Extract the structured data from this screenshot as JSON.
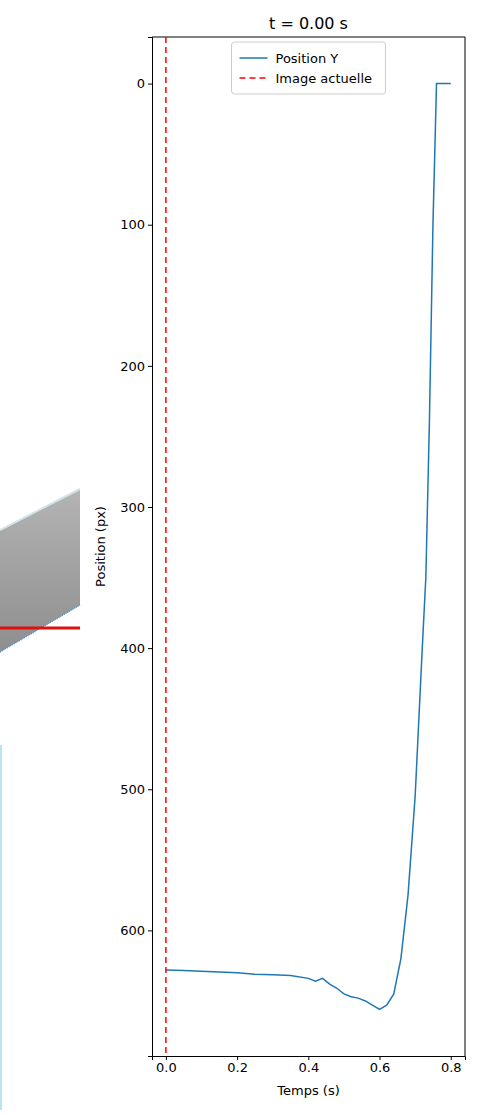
{
  "chart_data": {
    "type": "line",
    "title": "t = 0.00 s",
    "x_label": "Temps (s)",
    "y_label": "Position (px)",
    "x": [
      0,
      0.05,
      0.1,
      0.15,
      0.2,
      0.25,
      0.3,
      0.35,
      0.4,
      0.42,
      0.44,
      0.46,
      0.48,
      0.5,
      0.52,
      0.54,
      0.56,
      0.58,
      0.6,
      0.62,
      0.64,
      0.66,
      0.68,
      0.7,
      0.72,
      0.73,
      0.74,
      0.75,
      0.76,
      0.78,
      0.8
    ],
    "series": [
      {
        "name": "Position Y",
        "color": "#1f77b4",
        "line_style": "solid",
        "values": [
          628,
          628.5,
          629,
          629.5,
          630,
          631,
          631.5,
          632,
          634,
          636,
          634,
          638,
          641,
          645,
          647,
          648,
          650,
          653,
          656,
          653,
          645,
          620,
          575,
          505,
          400,
          350,
          240,
          100,
          0,
          0,
          0
        ]
      },
      {
        "name": "Image actuelle",
        "color": "#ff0000",
        "line_style": "dashed",
        "x": [
          0,
          0
        ],
        "values": [
          -33,
          689
        ]
      }
    ],
    "xlim": [
      -0.039,
      0.84
    ],
    "xticks": [
      {
        "value": 0,
        "label": "0.0"
      },
      {
        "value": 0.2,
        "label": "0.2"
      },
      {
        "value": 0.4,
        "label": "0.4"
      },
      {
        "value": 0.6,
        "label": "0.6"
      },
      {
        "value": 0.8,
        "label": "0.8"
      }
    ],
    "ylim": [
      -33,
      689
    ],
    "yticks": [
      0,
      100,
      200,
      300,
      400,
      500,
      600
    ],
    "legend": "upper center",
    "grid": false
  }
}
